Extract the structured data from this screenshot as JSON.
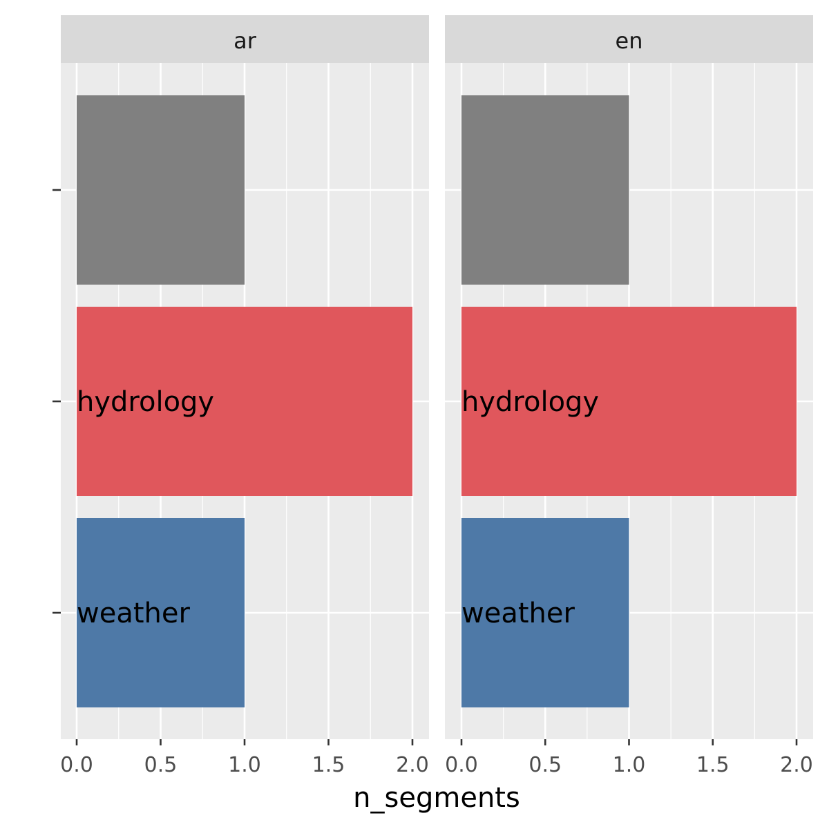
{
  "chart_data": {
    "type": "bar",
    "orientation": "horizontal",
    "facet_by": "language",
    "facets": [
      "ar",
      "en"
    ],
    "categories": [
      "",
      "hydrology",
      "weather"
    ],
    "colors": {
      "": "#808080",
      "hydrology": "#E0575C",
      "weather": "#4E79A7"
    },
    "series": [
      {
        "facet": "ar",
        "values": [
          1,
          2,
          1
        ]
      },
      {
        "facet": "en",
        "values": [
          1,
          2,
          1
        ]
      }
    ],
    "xlabel": "n_segments",
    "ylabel": "",
    "xlim": [
      0,
      2
    ],
    "x_ticks": [
      "0.0",
      "0.5",
      "1.0",
      "1.5",
      "2.0"
    ],
    "grid": true,
    "legend": "none"
  }
}
